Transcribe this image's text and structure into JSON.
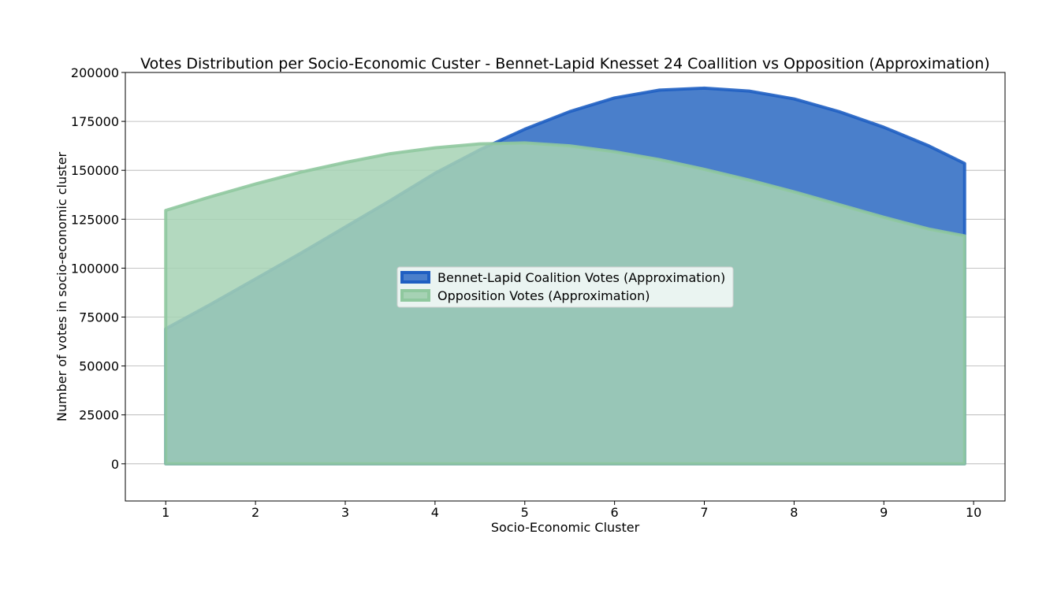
{
  "chart_data": {
    "type": "area",
    "title": "Votes Distribution per Socio-Economic Custer - Bennet-Lapid Knesset 24 Coallition vs Opposition (Approximation)",
    "xlabel": "Socio-Economic Cluster",
    "ylabel": "Number of votes in socio-economic cluster",
    "xlim": [
      0.55,
      10.35
    ],
    "ylim": [
      -19000,
      200000
    ],
    "xticks": [
      1,
      2,
      3,
      4,
      5,
      6,
      7,
      8,
      9,
      10
    ],
    "yticks": [
      0,
      25000,
      50000,
      75000,
      100000,
      125000,
      150000,
      175000,
      200000
    ],
    "grid": "horizontal",
    "legend_position": "center",
    "x": [
      1.0,
      1.5,
      2.0,
      2.5,
      3.0,
      3.5,
      4.0,
      4.5,
      5.0,
      5.5,
      6.0,
      6.5,
      7.0,
      7.5,
      8.0,
      8.5,
      9.0,
      9.5,
      9.9
    ],
    "series": [
      {
        "name": "Bennet-Lapid Coalition Votes (Approximation)",
        "color": "#1f5fc2",
        "fill": "#4a7fcb",
        "values": [
          69000,
          81500,
          94500,
          107500,
          121000,
          134500,
          148500,
          160500,
          171000,
          180000,
          187000,
          191000,
          192000,
          190500,
          186500,
          180000,
          172000,
          162500,
          153500
        ]
      },
      {
        "name": "Opposition Votes (Approximation)",
        "color": "#8fc89e",
        "fill": "#a6d2b4",
        "values": [
          129500,
          136500,
          143000,
          149000,
          154000,
          158500,
          161500,
          163500,
          164000,
          162500,
          159500,
          155500,
          150500,
          145000,
          139000,
          132500,
          126000,
          120000,
          116500
        ]
      }
    ]
  }
}
